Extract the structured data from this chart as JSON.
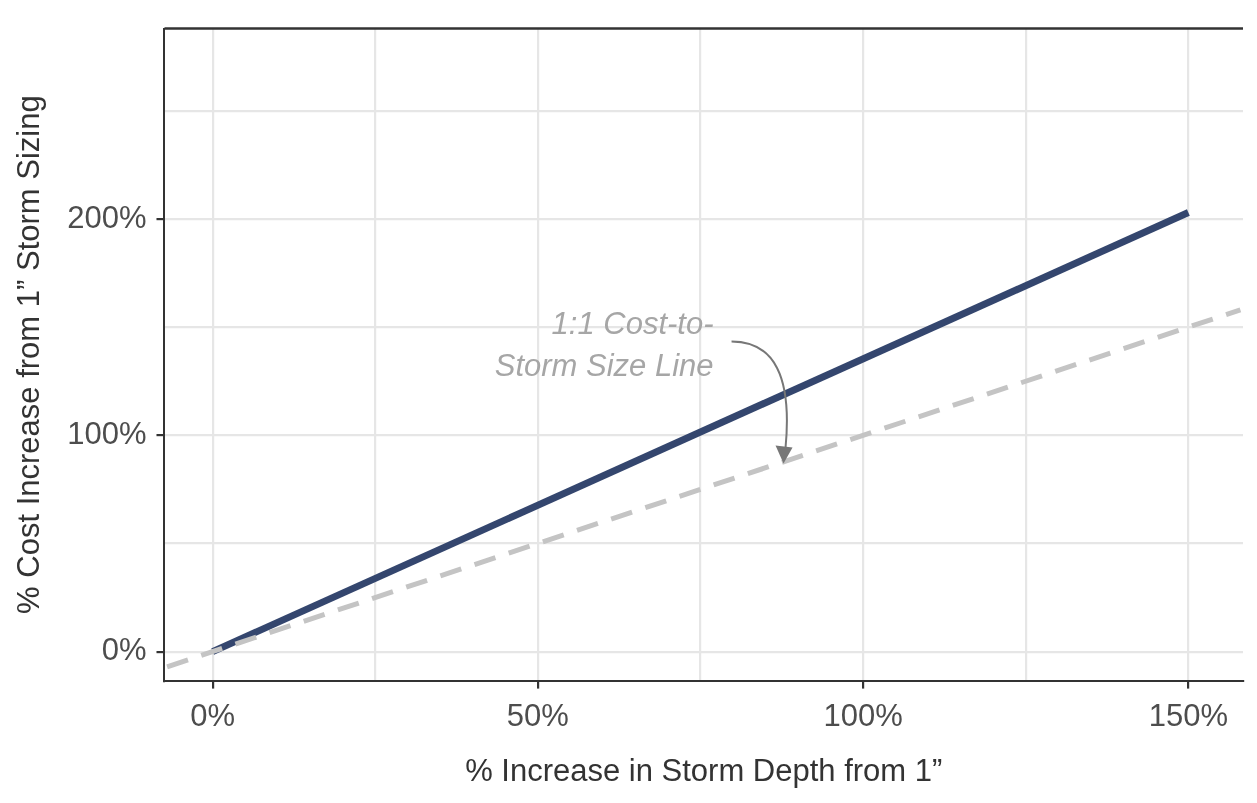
{
  "chart_data": {
    "type": "line",
    "xlabel": "% Increase in Storm Depth from 1”",
    "ylabel": "% Cost Increase from 1” Storm Sizing",
    "series": [
      {
        "color": "#34466e",
        "x": [
          0,
          150
        ],
        "values": [
          0,
          203
        ],
        "line_style": "solid"
      },
      {
        "color": "#c4c4c4",
        "x": [
          -7,
          158
        ],
        "values": [
          -7,
          158
        ],
        "line_style": "dashed"
      }
    ],
    "xlim": [
      -7.4,
      158.4
    ],
    "ylim": [
      -13.4,
      288
    ],
    "xticks": [
      {
        "value": 0,
        "label": "0%"
      },
      {
        "value": 25,
        "label": null
      },
      {
        "value": 50,
        "label": "50%"
      },
      {
        "value": 75,
        "label": null
      },
      {
        "value": 100,
        "label": "100%"
      },
      {
        "value": 125,
        "label": null
      },
      {
        "value": 150,
        "label": "150%"
      }
    ],
    "yticks": [
      {
        "value": 0,
        "label": "0%"
      },
      {
        "value": 50,
        "label": null
      },
      {
        "value": 100,
        "label": "100%"
      },
      {
        "value": 150,
        "label": null
      },
      {
        "value": 200,
        "label": "200%"
      },
      {
        "value": 250,
        "label": null
      }
    ],
    "annotations": [
      "1:1 Cost-to-\nStorm Size Line"
    ],
    "grid": true,
    "legend": false,
    "marker": "none"
  }
}
